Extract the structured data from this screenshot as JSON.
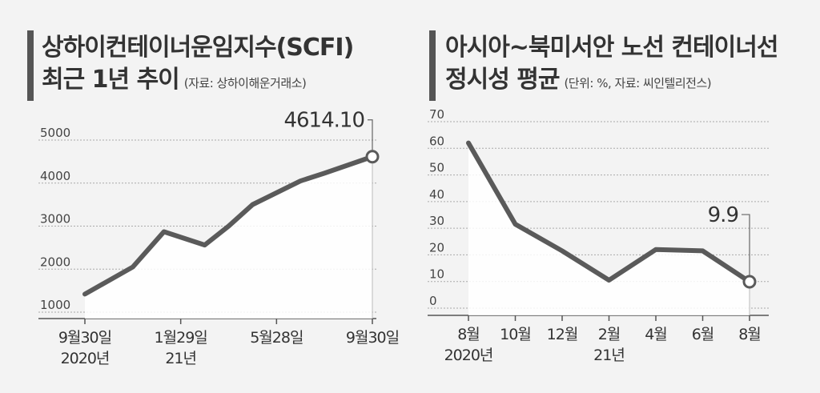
{
  "chart_data": [
    {
      "type": "area",
      "title": "상하이컨테이너운임지수(SCFI)",
      "title_line2": "최근 1년 추이",
      "source": "(자료: 상하이해운거래소)",
      "ylim": [
        1000,
        5000
      ],
      "yticks": [
        "5000",
        "4000",
        "3000",
        "2000",
        "1000"
      ],
      "ytick_values": [
        5000,
        4000,
        3000,
        2000,
        1000
      ],
      "xticks": [
        {
          "label": "9월30일",
          "sub": "2020년",
          "x": 0
        },
        {
          "label": "1월29일",
          "sub": "21년",
          "x": 4
        },
        {
          "label": "5월28일",
          "sub": "",
          "x": 8
        },
        {
          "label": "9월30일",
          "sub": "",
          "x": 12
        }
      ],
      "x": [
        0,
        2,
        3.3,
        5,
        6,
        7,
        9,
        10,
        12
      ],
      "values": [
        1420,
        2050,
        2870,
        2560,
        3000,
        3500,
        4050,
        4230,
        4614.1
      ],
      "annotation": "4614.10",
      "grid": true,
      "color": "#555555",
      "fill": "#ffffff"
    },
    {
      "type": "area",
      "title": "아시아~북미서안 노선 컨테이너선",
      "title_line2": "정시성 평균",
      "source": "(단위: %, 자료: 씨인텔리전스)",
      "ylim": [
        0,
        70
      ],
      "yticks": [
        "70",
        "60",
        "50",
        "40",
        "30",
        "20",
        "10",
        "0"
      ],
      "ytick_values": [
        70,
        60,
        50,
        40,
        30,
        20,
        10,
        0
      ],
      "xticks": [
        {
          "label": "8월",
          "sub": "2020년",
          "x": 0
        },
        {
          "label": "10월",
          "sub": "",
          "x": 2
        },
        {
          "label": "12월",
          "sub": "",
          "x": 4
        },
        {
          "label": "2월",
          "sub": "21년",
          "x": 6
        },
        {
          "label": "4월",
          "sub": "",
          "x": 8
        },
        {
          "label": "6월",
          "sub": "",
          "x": 10
        },
        {
          "label": "8월",
          "sub": "",
          "x": 12
        }
      ],
      "x": [
        0,
        2,
        4,
        6,
        8,
        10,
        12
      ],
      "values": [
        62,
        31.5,
        21.5,
        10.5,
        22,
        21.5,
        9.9
      ],
      "annotation": "9.9",
      "grid": true,
      "color": "#555555",
      "fill": "#ffffff"
    }
  ]
}
